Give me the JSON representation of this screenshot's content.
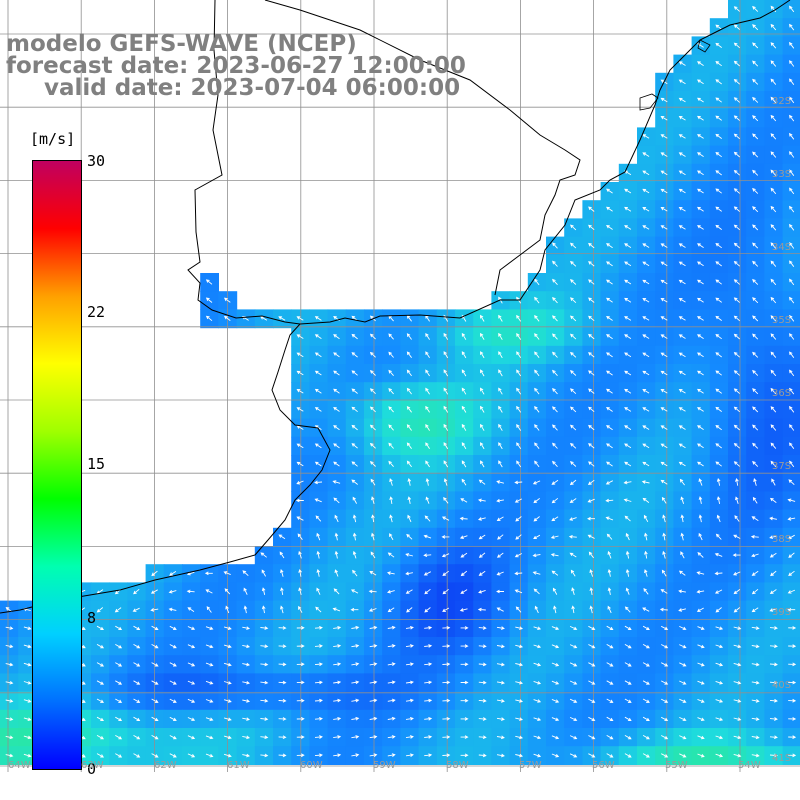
{
  "title": {
    "model": "modelo GEFS-WAVE (NCEP)",
    "forecast": "forecast date: 2023-06-27 12:00:00",
    "valid": "valid date: 2023-07-04 06:00:00"
  },
  "colorbar": {
    "unit": "[m/s]",
    "ticks": [
      "30",
      "22",
      "15",
      "8",
      "0"
    ],
    "colors": [
      "#0000ff",
      "#0070ff",
      "#00d0ff",
      "#00ffb0",
      "#00ff00",
      "#a0ff00",
      "#ffff00",
      "#ffa000",
      "#ff0000",
      "#c00060"
    ]
  },
  "grid": {
    "lat_labels": [
      "32S",
      "33S",
      "34S",
      "35S",
      "36S",
      "37S",
      "38S",
      "39S",
      "40S",
      "41S"
    ],
    "lon_labels": [
      "64W",
      "63W",
      "62W",
      "61W",
      "60W",
      "59W",
      "58W",
      "57W",
      "56W",
      "55W",
      "54W"
    ]
  },
  "map_colors": {
    "land": "#ffffff",
    "coast": "#000000",
    "grid": "#909090",
    "arrows": "#ffffff",
    "low": "#0a3cf0",
    "mid": "#1aa0ff",
    "high": "#20e0d0"
  },
  "field": {
    "description_speed_range_ms": [
      0,
      30
    ],
    "typical_speed_ms": [
      3,
      9
    ]
  }
}
